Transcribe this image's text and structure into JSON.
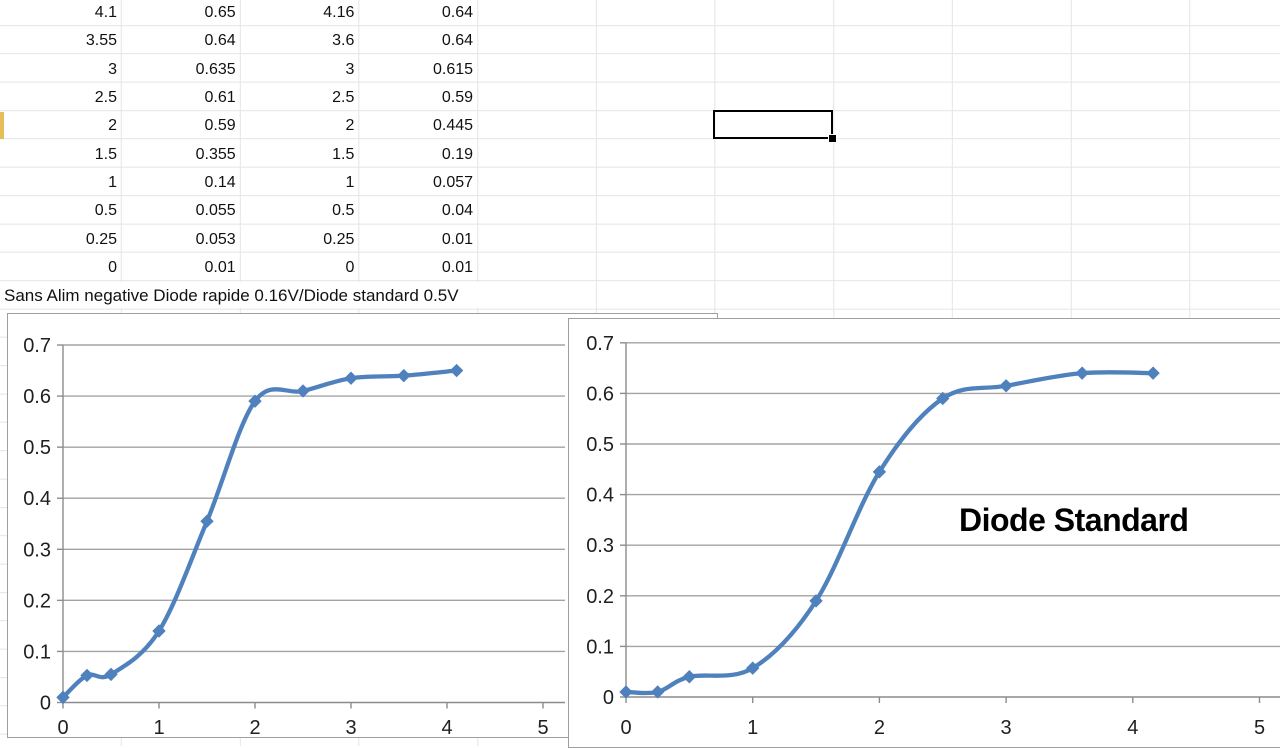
{
  "spreadsheet": {
    "rows": [
      [
        "4.1",
        "0.65",
        "4.16",
        "0.64"
      ],
      [
        "3.55",
        "0.64",
        "3.6",
        "0.64"
      ],
      [
        "3",
        "0.635",
        "3",
        "0.615"
      ],
      [
        "2.5",
        "0.61",
        "2.5",
        "0.59"
      ],
      [
        "2",
        "0.59",
        "2",
        "0.445"
      ],
      [
        "1.5",
        "0.355",
        "1.5",
        "0.19"
      ],
      [
        "1",
        "0.14",
        "1",
        "0.057"
      ],
      [
        "0.5",
        "0.055",
        "0.5",
        "0.04"
      ],
      [
        "0.25",
        "0.053",
        "0.25",
        "0.01"
      ],
      [
        "0",
        "0.01",
        "0",
        "0.01"
      ]
    ],
    "caption": "Sans Alim negative Diode rapide 0.16V/Diode standard 0.5V",
    "selected_cell_value": ""
  },
  "chart_data": [
    {
      "type": "line",
      "name": "diode-rapide",
      "x": [
        0,
        0.25,
        0.5,
        1,
        1.5,
        2,
        2.5,
        3,
        3.55,
        4.1
      ],
      "y": [
        0.01,
        0.053,
        0.055,
        0.14,
        0.355,
        0.59,
        0.61,
        0.635,
        0.64,
        0.65
      ],
      "title": "",
      "xlabel": "",
      "ylabel": "",
      "xlim": [
        0,
        5
      ],
      "ylim": [
        0,
        0.7
      ],
      "xticks": [
        "0",
        "1",
        "2",
        "3",
        "4",
        "5"
      ],
      "yticks": [
        "0",
        "0.1",
        "0.2",
        "0.3",
        "0.4",
        "0.5",
        "0.6",
        "0.7"
      ],
      "grid": true,
      "legend": false,
      "smooth": true,
      "marker": "diamond",
      "line_color": "#4F81BD",
      "annotation": ""
    },
    {
      "type": "line",
      "name": "diode-standard",
      "x": [
        0,
        0.25,
        0.5,
        1,
        1.5,
        2,
        2.5,
        3,
        3.6,
        4.16
      ],
      "y": [
        0.01,
        0.01,
        0.04,
        0.057,
        0.19,
        0.445,
        0.59,
        0.615,
        0.64,
        0.64
      ],
      "title": "",
      "xlabel": "",
      "ylabel": "",
      "xlim": [
        0,
        5
      ],
      "ylim": [
        0,
        0.7
      ],
      "xticks": [
        "0",
        "1",
        "2",
        "3",
        "4",
        "5"
      ],
      "yticks": [
        "0",
        "0.1",
        "0.2",
        "0.3",
        "0.4",
        "0.5",
        "0.6",
        "0.7"
      ],
      "grid": true,
      "legend": false,
      "smooth": true,
      "marker": "diamond",
      "line_color": "#4F81BD",
      "annotation": "Diode Standard"
    }
  ],
  "colors": {
    "series_blue": "#4F81BD",
    "grid_line": "#a3a3a3",
    "axis_line": "#8c8c8c",
    "row_highlight": "#E5BE5A",
    "sheet_gridline": "#e3e5e8"
  }
}
